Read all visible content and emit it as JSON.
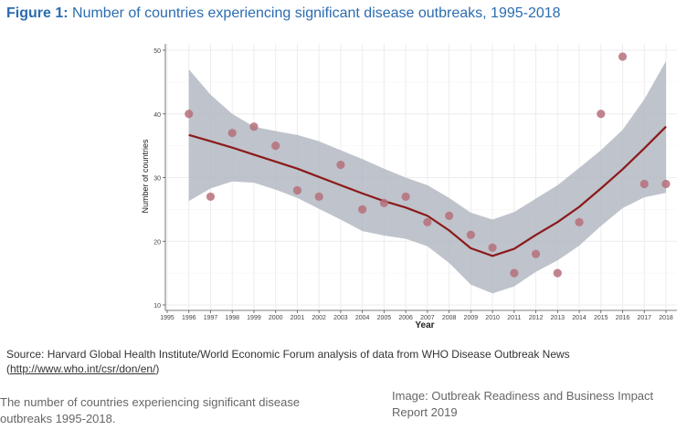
{
  "figure": {
    "label": "Figure 1:",
    "title": "Number of countries experiencing significant disease outbreaks, 1995-2018"
  },
  "source": {
    "text": "Source: Harvard Global Health Institute/World Economic Forum analysis of data from WHO Disease Outbreak News (",
    "link": "http://www.who.int/csr/don/en/",
    "suffix": ")"
  },
  "caption": "The number of countries experiencing significant disease outbreaks 1995-2018.",
  "credit": "Image: Outbreak Readiness and Business Impact Report 2019",
  "colors": {
    "title": "#2b6cb0",
    "point": "#b5707a",
    "line": "#8b1a1a",
    "band": "#b4b9c2",
    "grid": "#ececef"
  },
  "chart_data": {
    "type": "scatter",
    "title": "",
    "xlabel": "Year",
    "ylabel": "Number of countries",
    "xlim": [
      1995,
      2018
    ],
    "ylim": [
      10,
      50
    ],
    "x_ticks": [
      1995,
      1996,
      1997,
      1998,
      1999,
      2000,
      2001,
      2002,
      2003,
      2004,
      2005,
      2006,
      2007,
      2008,
      2009,
      2010,
      2011,
      2012,
      2013,
      2014,
      2015,
      2016,
      2017,
      2018
    ],
    "y_ticks": [
      10,
      20,
      30,
      40,
      50
    ],
    "grid": true,
    "series": [
      {
        "x": [
          1996,
          1997,
          1998,
          1999,
          2000,
          2001,
          2002,
          2003,
          2004,
          2005,
          2006,
          2007,
          2008,
          2009,
          2010,
          2011,
          2012,
          2013,
          2014,
          2015,
          2016,
          2017,
          2018
        ],
        "y": [
          40,
          27,
          37,
          38,
          35,
          28,
          27,
          32,
          25,
          26,
          27,
          23,
          24,
          21,
          19,
          15,
          18,
          15,
          23,
          40,
          49,
          29,
          29
        ]
      }
    ],
    "trend": {
      "x": [
        1996,
        1997,
        1998,
        1999,
        2000,
        2001,
        2002,
        2003,
        2004,
        2005,
        2006,
        2007,
        2008,
        2009,
        2010,
        2011,
        2012,
        2013,
        2014,
        2015,
        2016,
        2017,
        2018
      ],
      "y": [
        36.7,
        35.7,
        34.7,
        33.6,
        32.5,
        31.4,
        30.1,
        28.8,
        27.5,
        26.3,
        25.3,
        24.0,
        21.7,
        18.9,
        17.7,
        18.8,
        21.0,
        23.0,
        25.4,
        28.3,
        31.3,
        34.6,
        38.0
      ]
    },
    "confidence_band": {
      "x": [
        1996,
        1997,
        1998,
        1999,
        2000,
        2001,
        2002,
        2003,
        2004,
        2005,
        2006,
        2007,
        2008,
        2009,
        2010,
        2011,
        2012,
        2013,
        2014,
        2015,
        2016,
        2017,
        2018
      ],
      "upper": [
        47.0,
        43.0,
        40.0,
        38.0,
        37.3,
        36.7,
        35.7,
        34.3,
        32.9,
        31.4,
        30.0,
        28.8,
        26.8,
        24.5,
        23.4,
        24.6,
        26.7,
        28.8,
        31.5,
        34.3,
        37.5,
        42.3,
        48.3
      ],
      "lower": [
        26.3,
        28.3,
        29.4,
        29.2,
        28.1,
        26.8,
        25.1,
        23.4,
        21.6,
        20.9,
        20.4,
        19.2,
        16.6,
        13.2,
        11.8,
        12.9,
        15.2,
        17.0,
        19.3,
        22.4,
        25.2,
        26.9,
        27.6
      ]
    }
  }
}
